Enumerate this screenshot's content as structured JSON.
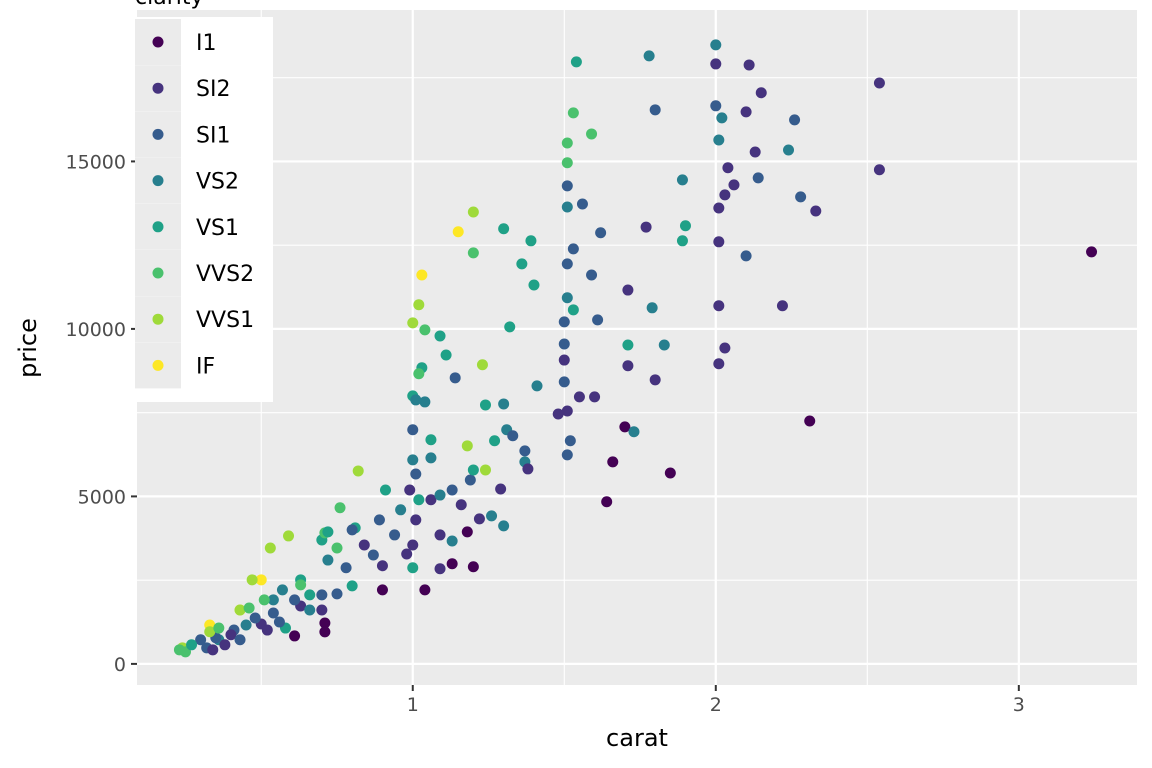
{
  "chart_data": {
    "type": "scatter",
    "xlabel": "carat",
    "ylabel": "price",
    "xlim": [
      0.09,
      3.39
    ],
    "ylim": [
      -630,
      19520
    ],
    "x_ticks": [
      1,
      2,
      3
    ],
    "y_ticks": [
      0,
      5000,
      10000,
      15000
    ],
    "x_tick_labels": [
      "1",
      "2",
      "3"
    ],
    "y_tick_labels": [
      "0",
      "5000",
      "10000",
      "15000"
    ],
    "grid": true,
    "legend": {
      "title": "clarity",
      "placement": "top-left inside",
      "entries": [
        "I1",
        "SI2",
        "SI1",
        "VS2",
        "VS1",
        "VVS2",
        "VVS1",
        "IF"
      ]
    },
    "colors": {
      "I1": "#440154",
      "SI2": "#46337E",
      "SI1": "#365C8D",
      "VS2": "#277F8E",
      "VS1": "#1FA187",
      "VVS2": "#4AC16D",
      "VVS1": "#9FDA3A",
      "IF": "#FDE725"
    },
    "points": [
      [
        3.24,
        12300,
        "I1"
      ],
      [
        2.31,
        7250,
        "I1"
      ],
      [
        1.7,
        7075,
        "I1"
      ],
      [
        1.66,
        6030,
        "I1"
      ],
      [
        1.85,
        5700,
        "I1"
      ],
      [
        1.64,
        4840,
        "I1"
      ],
      [
        1.18,
        3940,
        "I1"
      ],
      [
        1.13,
        2990,
        "I1"
      ],
      [
        1.2,
        2900,
        "I1"
      ],
      [
        1.04,
        2210,
        "I1"
      ],
      [
        0.9,
        2210,
        "I1"
      ],
      [
        0.71,
        1220,
        "I1"
      ],
      [
        0.71,
        955,
        "I1"
      ],
      [
        0.61,
        835,
        "I1"
      ],
      [
        2.0,
        18480,
        "VS2"
      ],
      [
        1.54,
        17970,
        "VS1"
      ],
      [
        1.78,
        18150,
        "VS2"
      ],
      [
        2.0,
        17910,
        "SI2"
      ],
      [
        2.11,
        17880,
        "SI2"
      ],
      [
        2.54,
        17340,
        "SI2"
      ],
      [
        2.15,
        17050,
        "SI2"
      ],
      [
        1.8,
        16540,
        "SI1"
      ],
      [
        1.53,
        16450,
        "VVS2"
      ],
      [
        2.0,
        16660,
        "SI1"
      ],
      [
        2.1,
        16480,
        "SI2"
      ],
      [
        2.02,
        16300,
        "VS2"
      ],
      [
        2.26,
        16240,
        "SI1"
      ],
      [
        1.59,
        15820,
        "VVS2"
      ],
      [
        2.01,
        15640,
        "VS2"
      ],
      [
        1.51,
        15550,
        "VVS2"
      ],
      [
        2.13,
        15280,
        "SI2"
      ],
      [
        2.24,
        15340,
        "VS2"
      ],
      [
        1.51,
        14960,
        "VVS2"
      ],
      [
        2.04,
        14810,
        "SI2"
      ],
      [
        2.54,
        14750,
        "SI2"
      ],
      [
        2.14,
        14510,
        "SI1"
      ],
      [
        1.89,
        14450,
        "VS2"
      ],
      [
        1.51,
        14270,
        "SI1"
      ],
      [
        2.06,
        14300,
        "SI2"
      ],
      [
        2.03,
        14000,
        "SI2"
      ],
      [
        2.28,
        13940,
        "SI1"
      ],
      [
        1.56,
        13730,
        "SI1"
      ],
      [
        1.51,
        13640,
        "VS2"
      ],
      [
        2.01,
        13610,
        "SI2"
      ],
      [
        2.33,
        13520,
        "SI2"
      ],
      [
        1.2,
        13490,
        "VVS1"
      ],
      [
        1.15,
        12900,
        "IF"
      ],
      [
        1.3,
        12990,
        "VS1"
      ],
      [
        1.9,
        13080,
        "VS1"
      ],
      [
        1.77,
        13040,
        "SI2"
      ],
      [
        1.62,
        12870,
        "SI1"
      ],
      [
        1.39,
        12630,
        "VS1"
      ],
      [
        2.01,
        12600,
        "SI2"
      ],
      [
        1.89,
        12630,
        "VS1"
      ],
      [
        1.53,
        12390,
        "SI1"
      ],
      [
        1.2,
        12270,
        "VVS2"
      ],
      [
        2.1,
        12180,
        "SI1"
      ],
      [
        1.36,
        11940,
        "VS1"
      ],
      [
        1.51,
        11940,
        "SI1"
      ],
      [
        1.59,
        11610,
        "SI1"
      ],
      [
        1.03,
        11610,
        "IF"
      ],
      [
        1.4,
        11310,
        "VS1"
      ],
      [
        1.71,
        11160,
        "SI2"
      ],
      [
        1.51,
        10930,
        "VS2"
      ],
      [
        2.01,
        10690,
        "SI2"
      ],
      [
        1.79,
        10630,
        "VS2"
      ],
      [
        2.22,
        10690,
        "SI2"
      ],
      [
        1.53,
        10570,
        "VS1"
      ],
      [
        1.02,
        10720,
        "VVS1"
      ],
      [
        1.5,
        10210,
        "SI1"
      ],
      [
        1.61,
        10270,
        "SI1"
      ],
      [
        1.32,
        10060,
        "VS1"
      ],
      [
        1.0,
        10180,
        "VVS1"
      ],
      [
        1.04,
        9970,
        "VVS2"
      ],
      [
        1.09,
        9790,
        "VS1"
      ],
      [
        1.71,
        9520,
        "VS1"
      ],
      [
        1.83,
        9520,
        "VS2"
      ],
      [
        1.5,
        9550,
        "SI1"
      ],
      [
        2.03,
        9430,
        "SI2"
      ],
      [
        1.11,
        9220,
        "VS1"
      ],
      [
        1.03,
        8840,
        "VS1"
      ],
      [
        1.71,
        8900,
        "SI2"
      ],
      [
        1.23,
        8930,
        "VVS1"
      ],
      [
        2.01,
        8960,
        "SI2"
      ],
      [
        1.5,
        9070,
        "SI2"
      ],
      [
        1.14,
        8540,
        "SI1"
      ],
      [
        1.5,
        8420,
        "SI1"
      ],
      [
        1.8,
        8480,
        "SI2"
      ],
      [
        1.41,
        8300,
        "VS2"
      ],
      [
        1.6,
        7970,
        "SI2"
      ],
      [
        1.55,
        7970,
        "SI2"
      ],
      [
        1.0,
        8000,
        "VS1"
      ],
      [
        1.3,
        7760,
        "VS2"
      ],
      [
        1.24,
        7730,
        "VS1"
      ],
      [
        1.04,
        7820,
        "VS2"
      ],
      [
        1.51,
        7550,
        "SI2"
      ],
      [
        1.48,
        7460,
        "SI2"
      ],
      [
        1.73,
        6930,
        "VS2"
      ],
      [
        1.31,
        6990,
        "VS2"
      ],
      [
        1.33,
        6810,
        "SI1"
      ],
      [
        1.37,
        6360,
        "SI1"
      ],
      [
        1.52,
        6660,
        "SI1"
      ],
      [
        1.18,
        6510,
        "VVS1"
      ],
      [
        1.51,
        6240,
        "SI1"
      ],
      [
        1.27,
        6660,
        "VS1"
      ],
      [
        1.37,
        6030,
        "VS2"
      ],
      [
        1.24,
        5790,
        "VVS1"
      ],
      [
        1.38,
        5820,
        "SI2"
      ],
      [
        0.82,
        5760,
        "VVS1"
      ],
      [
        1.06,
        6150,
        "VS2"
      ],
      [
        1.29,
        5220,
        "SI2"
      ],
      [
        1.13,
        5190,
        "SI1"
      ],
      [
        0.91,
        5190,
        "VS1"
      ],
      [
        0.96,
        4600,
        "VS2"
      ],
      [
        1.26,
        4420,
        "VS2"
      ],
      [
        0.76,
        4660,
        "VVS2"
      ],
      [
        1.3,
        4120,
        "VS2"
      ],
      [
        1.22,
        4330,
        "SI2"
      ],
      [
        0.81,
        4060,
        "VS1"
      ],
      [
        0.59,
        3820,
        "VVS1"
      ],
      [
        0.53,
        3460,
        "VVS1"
      ],
      [
        0.7,
        3700,
        "VS1"
      ],
      [
        1.13,
        3670,
        "VS2"
      ],
      [
        0.98,
        3280,
        "SI2"
      ],
      [
        0.9,
        2930,
        "SI2"
      ],
      [
        1.0,
        2870,
        "VS1"
      ],
      [
        1.09,
        2840,
        "SI2"
      ],
      [
        0.78,
        2870,
        "SI1"
      ],
      [
        0.87,
        3250,
        "SI1"
      ],
      [
        0.72,
        3100,
        "VS2"
      ],
      [
        0.63,
        2510,
        "VS1"
      ],
      [
        0.63,
        1730,
        "SI2"
      ],
      [
        0.5,
        2510,
        "IF"
      ],
      [
        0.47,
        2510,
        "VVS1"
      ],
      [
        0.43,
        1610,
        "IF"
      ],
      [
        0.43,
        1610,
        "VVS1"
      ],
      [
        0.54,
        1910,
        "VS2"
      ],
      [
        0.54,
        1520,
        "SI1"
      ],
      [
        0.5,
        1190,
        "SI2"
      ],
      [
        0.41,
        1010,
        "SI1"
      ],
      [
        0.33,
        1160,
        "IF"
      ],
      [
        0.3,
        720,
        "SI1"
      ],
      [
        0.24,
        480,
        "VVS1"
      ],
      [
        0.25,
        360,
        "VVS2"
      ],
      [
        0.32,
        480,
        "SI1"
      ],
      [
        0.36,
        720,
        "VS2"
      ],
      [
        0.38,
        570,
        "SI2"
      ],
      [
        0.58,
        1070,
        "VS1"
      ],
      [
        0.66,
        1610,
        "VS2"
      ],
      [
        0.7,
        2060,
        "SI1"
      ],
      [
        0.8,
        2330,
        "VS1"
      ],
      [
        0.75,
        2090,
        "SI1"
      ],
      [
        0.7,
        1610,
        "SI2"
      ],
      [
        0.75,
        3460,
        "VVS2"
      ],
      [
        0.71,
        3910,
        "VVS2"
      ],
      [
        0.72,
        3940,
        "VS1"
      ],
      [
        0.8,
        4000,
        "SI1"
      ],
      [
        1.01,
        5670,
        "SI1"
      ],
      [
        0.99,
        5190,
        "SI2"
      ],
      [
        1.0,
        6990,
        "SI1"
      ],
      [
        1.01,
        7880,
        "VS2"
      ],
      [
        1.02,
        8660,
        "VVS2"
      ],
      [
        1.0,
        6090,
        "VS2"
      ],
      [
        1.06,
        6690,
        "VS1"
      ],
      [
        1.06,
        4900,
        "SI2"
      ],
      [
        1.09,
        5040,
        "VS2"
      ],
      [
        1.16,
        4750,
        "SI2"
      ],
      [
        1.19,
        5490,
        "SI1"
      ],
      [
        1.2,
        5790,
        "VS1"
      ],
      [
        1.09,
        3850,
        "SI2"
      ],
      [
        1.0,
        3550,
        "SI2"
      ],
      [
        0.94,
        3850,
        "SI1"
      ],
      [
        0.84,
        3550,
        "SI2"
      ],
      [
        0.89,
        4300,
        "SI1"
      ],
      [
        1.01,
        4300,
        "SI2"
      ],
      [
        1.02,
        4900,
        "VS1"
      ],
      [
        0.23,
        420,
        "VVS2"
      ],
      [
        0.27,
        570,
        "VS1"
      ],
      [
        0.35,
        780,
        "SI1"
      ],
      [
        0.4,
        870,
        "SI2"
      ],
      [
        0.45,
        1160,
        "VS2"
      ],
      [
        0.48,
        1370,
        "SI1"
      ],
      [
        0.46,
        1670,
        "VVS2"
      ],
      [
        0.51,
        1910,
        "VVS2"
      ],
      [
        0.57,
        2210,
        "VS2"
      ],
      [
        0.61,
        1910,
        "SI1"
      ],
      [
        0.52,
        1010,
        "SI2"
      ],
      [
        0.56,
        1250,
        "SI1"
      ],
      [
        0.33,
        960,
        "VVS1"
      ],
      [
        0.36,
        1070,
        "VVS2"
      ],
      [
        0.63,
        2360,
        "VVS2"
      ],
      [
        0.66,
        2060,
        "VS1"
      ],
      [
        0.43,
        720,
        "SI1"
      ],
      [
        0.34,
        420,
        "SI2"
      ]
    ]
  }
}
